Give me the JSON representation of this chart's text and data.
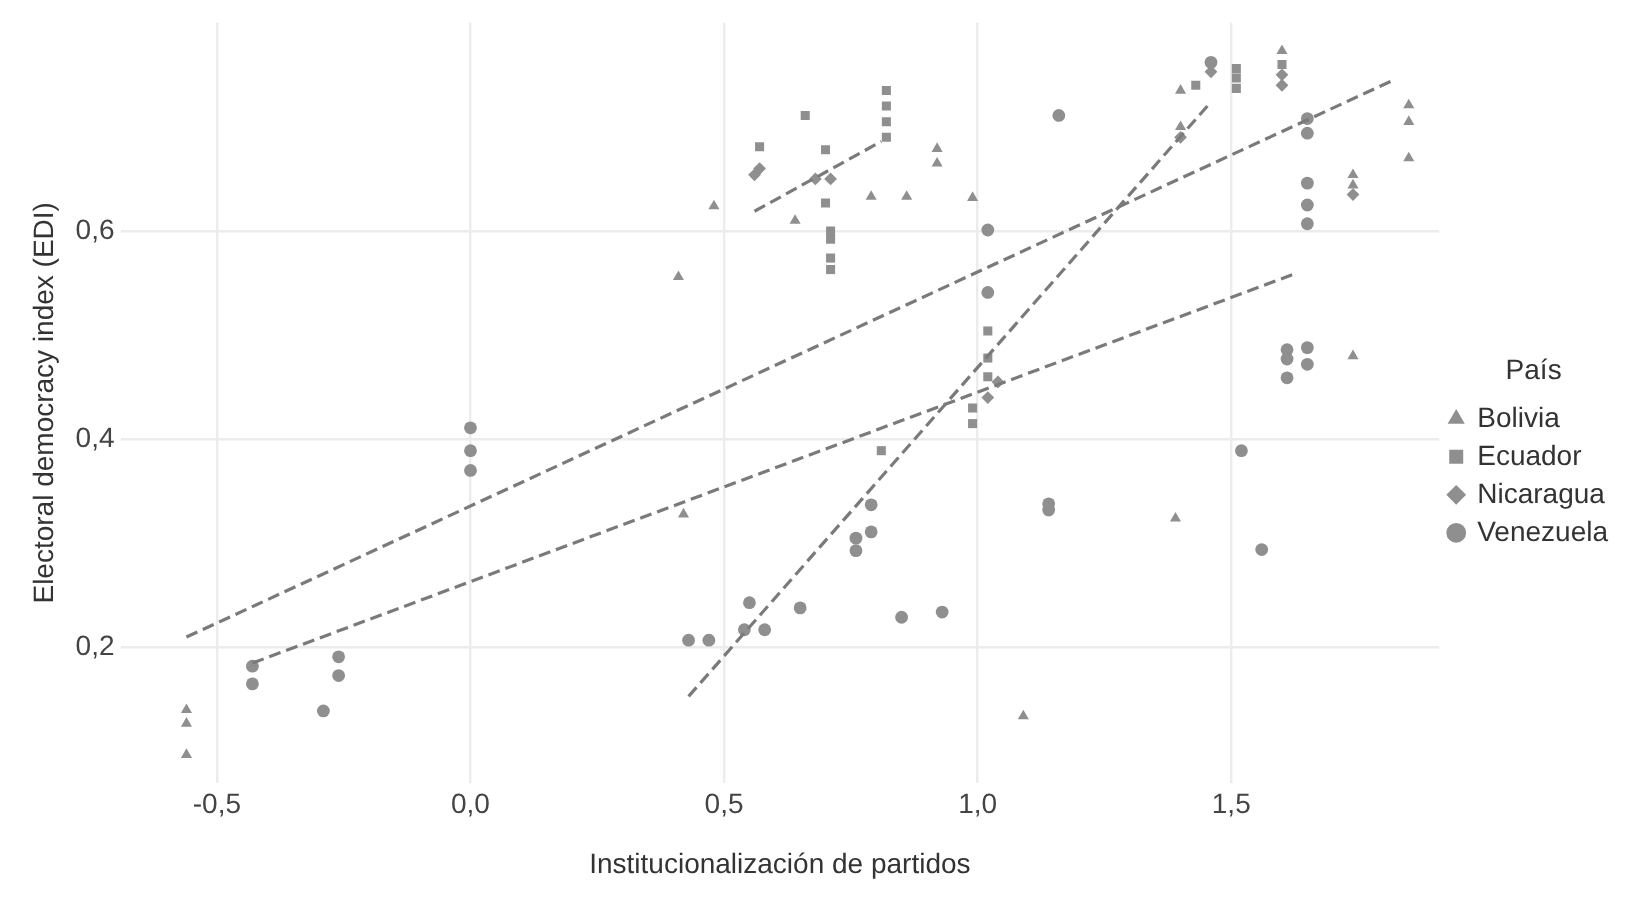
{
  "chart_data": {
    "type": "scatter",
    "xlabel": "Institucionalización de partidos",
    "ylabel": "Electoral democracy index (EDI)",
    "legend_title": "País",
    "legend": "right",
    "grid": true,
    "xlim": [
      -0.69,
      1.91
    ],
    "ylim": [
      0.07,
      0.8
    ],
    "xticks": [
      {
        "value": -0.5,
        "label": "-0,5"
      },
      {
        "value": 0,
        "label": "0,0"
      },
      {
        "value": 0.5,
        "label": "0,5"
      },
      {
        "value": 1,
        "label": "1,0"
      },
      {
        "value": 1.5,
        "label": "1,5"
      }
    ],
    "yticks": [
      {
        "value": 0.2,
        "label": "0,2"
      },
      {
        "value": 0.4,
        "label": "0,4"
      },
      {
        "value": 0.6,
        "label": "0,6"
      }
    ],
    "series": [
      {
        "name": "Bolivia",
        "color": "#8f8f8f",
        "marker": "triangle",
        "x": [
          -0.56,
          -0.56,
          -0.56,
          0.41,
          0.42,
          0.48,
          0.64,
          0.79,
          0.86,
          0.92,
          0.92,
          0.99,
          1.09,
          1.39,
          1.4,
          1.4,
          1.6,
          1.74,
          1.74,
          1.74,
          1.85,
          1.85,
          1.85
        ],
        "values": [
          0.14,
          0.127,
          0.097,
          0.556,
          0.328,
          0.624,
          0.61,
          0.633,
          0.633,
          0.679,
          0.665,
          0.632,
          0.134,
          0.324,
          0.735,
          0.7,
          0.773,
          0.654,
          0.644,
          0.48,
          0.721,
          0.705,
          0.67
        ]
      },
      {
        "name": "Ecuador",
        "color": "#8f8f8f",
        "marker": "square",
        "x": [
          0.57,
          0.66,
          0.7,
          0.7,
          0.71,
          0.71,
          0.71,
          0.71,
          0.82,
          0.82,
          0.82,
          0.82,
          0.81,
          0.99,
          0.99,
          1.02,
          1.02,
          1.02,
          1.43,
          1.51,
          1.51,
          1.51,
          1.6
        ],
        "values": [
          0.681,
          0.711,
          0.678,
          0.627,
          0.6,
          0.592,
          0.574,
          0.563,
          0.735,
          0.72,
          0.705,
          0.69,
          0.389,
          0.43,
          0.415,
          0.504,
          0.478,
          0.46,
          0.74,
          0.756,
          0.747,
          0.737,
          0.76
        ]
      },
      {
        "name": "Nicaragua",
        "color": "#8f8f8f",
        "marker": "diamond",
        "x": [
          0.56,
          0.57,
          0.68,
          0.71,
          1.02,
          1.04,
          1.4,
          1.46,
          1.6,
          1.6,
          1.74
        ],
        "values": [
          0.654,
          0.66,
          0.65,
          0.65,
          0.44,
          0.455,
          0.69,
          0.753,
          0.75,
          0.74,
          0.635
        ]
      },
      {
        "name": "Venezuela",
        "color": "#8f8f8f",
        "marker": "circle",
        "x": [
          -0.43,
          -0.43,
          -0.29,
          -0.26,
          -0.26,
          0,
          0,
          0,
          0.43,
          0.47,
          0.54,
          0.55,
          0.58,
          0.65,
          0.79,
          0.79,
          0.76,
          0.76,
          0.85,
          0.93,
          1.02,
          1.02,
          1.14,
          1.14,
          1.16,
          1.46,
          1.52,
          1.56,
          1.61,
          1.61,
          1.61,
          1.65,
          1.65,
          1.65,
          1.65,
          1.65,
          1.65,
          1.65
        ],
        "values": [
          0.182,
          0.165,
          0.139,
          0.191,
          0.173,
          0.411,
          0.389,
          0.37,
          0.207,
          0.207,
          0.217,
          0.243,
          0.217,
          0.238,
          0.337,
          0.311,
          0.305,
          0.293,
          0.229,
          0.234,
          0.601,
          0.541,
          0.338,
          0.332,
          0.711,
          0.762,
          0.389,
          0.294,
          0.486,
          0.477,
          0.459,
          0.488,
          0.472,
          0.708,
          0.694,
          0.646,
          0.625,
          0.607
        ]
      },
      {
        "type": "line",
        "color": "#7a7a7a",
        "marker": "none",
        "line_style": "dashed",
        "x": [
          -0.56,
          1.82
        ],
        "values": [
          0.21,
          0.745
        ]
      },
      {
        "type": "line",
        "color": "#7a7a7a",
        "marker": "none",
        "line_style": "dashed",
        "x": [
          -0.43,
          1.62
        ],
        "values": [
          0.185,
          0.558
        ]
      },
      {
        "type": "line",
        "color": "#7a7a7a",
        "marker": "none",
        "line_style": "dashed",
        "x": [
          0.43,
          1.46
        ],
        "values": [
          0.153,
          0.724
        ]
      },
      {
        "type": "line",
        "color": "#7a7a7a",
        "marker": "none",
        "line_style": "dashed",
        "x": [
          0.56,
          0.81
        ],
        "values": [
          0.619,
          0.686
        ]
      }
    ]
  }
}
